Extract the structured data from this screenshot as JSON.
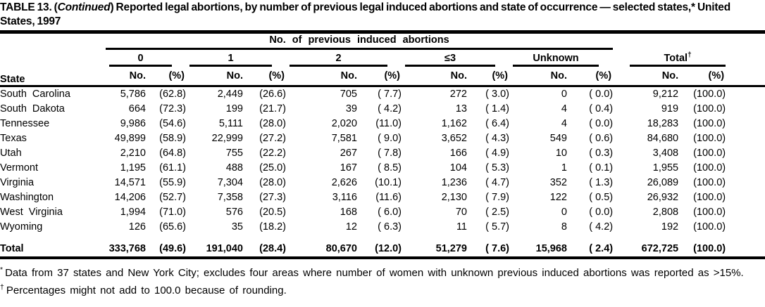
{
  "title": {
    "prefix": "TABLE 13. (",
    "continued": "Continued",
    "rest": ") Reported legal abortions, by number of previous legal induced abortions and state of occurrence — selected states,* United States, 1997"
  },
  "header": {
    "column_spanner": "No. of previous induced abortions",
    "state_label": "State",
    "groups": [
      "0",
      "1",
      "2",
      "≤3",
      "Unknown"
    ],
    "total_label": "Total",
    "total_marker": "†",
    "no_label": "No.",
    "pct_label": "(%)"
  },
  "rows": [
    {
      "state": "South Carolina",
      "values": [
        "5,786",
        "(62.8)",
        "2,449",
        "(26.6)",
        "705",
        "( 7.7)",
        "272",
        "( 3.0)",
        "0",
        "( 0.0)",
        "9,212",
        "(100.0)"
      ]
    },
    {
      "state": "South Dakota",
      "values": [
        "664",
        "(72.3)",
        "199",
        "(21.7)",
        "39",
        "( 4.2)",
        "13",
        "( 1.4)",
        "4",
        "( 0.4)",
        "919",
        "(100.0)"
      ]
    },
    {
      "state": "Tennessee",
      "values": [
        "9,986",
        "(54.6)",
        "5,111",
        "(28.0)",
        "2,020",
        "(11.0)",
        "1,162",
        "( 6.4)",
        "4",
        "( 0.0)",
        "18,283",
        "(100.0)"
      ]
    },
    {
      "state": "Texas",
      "values": [
        "49,899",
        "(58.9)",
        "22,999",
        "(27.2)",
        "7,581",
        "( 9.0)",
        "3,652",
        "( 4.3)",
        "549",
        "( 0.6)",
        "84,680",
        "(100.0)"
      ]
    },
    {
      "state": "Utah",
      "values": [
        "2,210",
        "(64.8)",
        "755",
        "(22.2)",
        "267",
        "( 7.8)",
        "166",
        "( 4.9)",
        "10",
        "( 0.3)",
        "3,408",
        "(100.0)"
      ]
    },
    {
      "state": "Vermont",
      "values": [
        "1,195",
        "(61.1)",
        "488",
        "(25.0)",
        "167",
        "( 8.5)",
        "104",
        "( 5.3)",
        "1",
        "( 0.1)",
        "1,955",
        "(100.0)"
      ]
    },
    {
      "state": "Virginia",
      "values": [
        "14,571",
        "(55.9)",
        "7,304",
        "(28.0)",
        "2,626",
        "(10.1)",
        "1,236",
        "( 4.7)",
        "352",
        "( 1.3)",
        "26,089",
        "(100.0)"
      ]
    },
    {
      "state": "Washington",
      "values": [
        "14,206",
        "(52.7)",
        "7,358",
        "(27.3)",
        "3,116",
        "(11.6)",
        "2,130",
        "( 7.9)",
        "122",
        "( 0.5)",
        "26,932",
        "(100.0)"
      ]
    },
    {
      "state": "West Virginia",
      "values": [
        "1,994",
        "(71.0)",
        "576",
        "(20.5)",
        "168",
        "( 6.0)",
        "70",
        "( 2.5)",
        "0",
        "( 0.0)",
        "2,808",
        "(100.0)"
      ]
    },
    {
      "state": "Wyoming",
      "values": [
        "126",
        "(65.6)",
        "35",
        "(18.2)",
        "12",
        "( 6.3)",
        "11",
        "( 5.7)",
        "8",
        "( 4.2)",
        "192",
        "(100.0)"
      ]
    }
  ],
  "total_row": {
    "state": "Total",
    "values": [
      "333,768",
      "(49.6)",
      "191,040",
      "(28.4)",
      "80,670",
      "(12.0)",
      "51,279",
      "( 7.6)",
      "15,968",
      "( 2.4)",
      "672,725",
      "(100.0)"
    ]
  },
  "footnotes": [
    {
      "marker": "*",
      "text": "Data from 37 states and New York City; excludes four areas where number of women with unknown previous induced abortions was reported as >15%."
    },
    {
      "marker": "†",
      "text": "Percentages might not add to 100.0 because of rounding."
    }
  ]
}
